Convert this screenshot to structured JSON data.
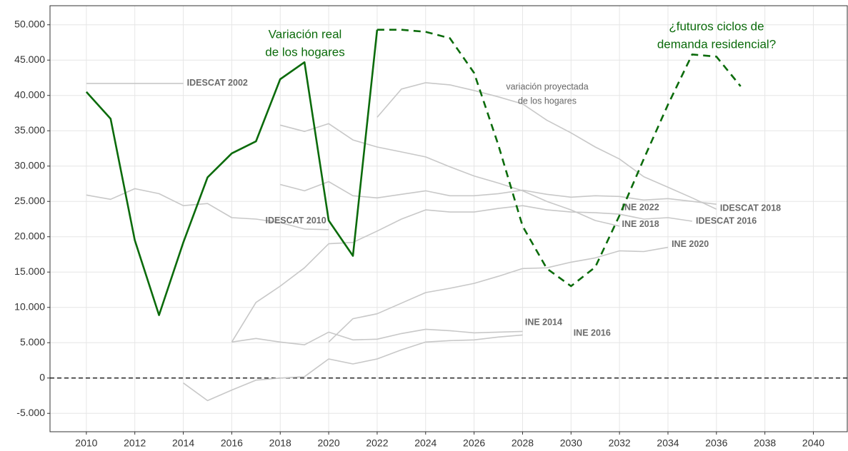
{
  "chart_data": {
    "type": "line",
    "x": [
      2010,
      2011,
      2012,
      2013,
      2014,
      2015,
      2016,
      2017,
      2018,
      2019,
      2020,
      2021,
      2022,
      2023,
      2024,
      2025,
      2026,
      2027,
      2028,
      2029,
      2030,
      2031,
      2032,
      2033,
      2034,
      2035,
      2036,
      2037
    ],
    "xlim": [
      2008.5,
      2041.4
    ],
    "xticks": [
      2010,
      2012,
      2014,
      2016,
      2018,
      2020,
      2022,
      2024,
      2026,
      2028,
      2030,
      2032,
      2034,
      2036,
      2038,
      2040
    ],
    "ylim": [
      -7600,
      52700
    ],
    "yticks": [
      {
        "value": -5000,
        "label": "-5.000"
      },
      0,
      {
        "value": 5000,
        "label": "5.000"
      },
      {
        "value": 10000,
        "label": "10.000"
      },
      {
        "value": 15000,
        "label": "15.000"
      },
      {
        "value": 20000,
        "label": "20.000"
      },
      {
        "value": 25000,
        "label": "25.000"
      },
      {
        "value": 30000,
        "label": "30.000"
      },
      {
        "value": 35000,
        "label": "35.000"
      },
      {
        "value": 40000,
        "label": "40.000"
      },
      {
        "value": 45000,
        "label": "45.000"
      },
      {
        "value": 50000,
        "label": "50.000"
      }
    ],
    "grid": true,
    "hline": 0,
    "series": [
      {
        "color": "#0b6b0b",
        "dash": false,
        "values": [
          40500,
          36700,
          19500,
          8900,
          19200,
          28400,
          31800,
          33500,
          42300,
          44700,
          22300,
          17300,
          49300,
          null,
          null,
          null,
          null,
          null,
          null,
          null,
          null,
          null,
          null,
          null,
          null,
          null,
          null,
          null
        ]
      },
      {
        "color": "#0b6b0b",
        "dash": true,
        "values": [
          null,
          null,
          null,
          null,
          null,
          null,
          null,
          null,
          null,
          null,
          null,
          null,
          49300,
          49300,
          49000,
          48100,
          43200,
          33000,
          21500,
          15500,
          13000,
          15700,
          23000,
          31000,
          38700,
          45800,
          45500,
          41300
        ]
      },
      {
        "name": "IDESCAT 2002",
        "color": "#c8c8c8",
        "dash": false,
        "values": [
          41700,
          41700,
          41700,
          41700,
          41700,
          null,
          null,
          null,
          null,
          null,
          null,
          null,
          null,
          null,
          null,
          null,
          null,
          null,
          null,
          null,
          null,
          null,
          null,
          null,
          null,
          null,
          null,
          null
        ]
      },
      {
        "name": "IDESCAT 2010",
        "color": "#c8c8c8",
        "dash": false,
        "values": [
          25900,
          25300,
          26800,
          26100,
          24400,
          24700,
          22700,
          22500,
          22000,
          21100,
          21000,
          null,
          null,
          null,
          null,
          null,
          null,
          null,
          null,
          null,
          null,
          null,
          null,
          null,
          null,
          null,
          null,
          null
        ]
      },
      {
        "name": "INE 2018",
        "color": "#c8c8c8",
        "dash": false,
        "values": [
          null,
          null,
          null,
          null,
          null,
          null,
          null,
          null,
          35800,
          34900,
          36000,
          33700,
          32700,
          32000,
          31300,
          29900,
          28600,
          27600,
          26500,
          25000,
          23800,
          22300,
          21500,
          null,
          null,
          null,
          null,
          null
        ]
      },
      {
        "name": "IDESCAT 2018",
        "color": "#c8c8c8",
        "dash": false,
        "values": [
          null,
          null,
          null,
          null,
          null,
          null,
          null,
          null,
          27400,
          26500,
          27800,
          25800,
          25500,
          26000,
          26500,
          25800,
          25800,
          26100,
          26600,
          26000,
          25600,
          25800,
          25700,
          25200,
          25400,
          25000,
          24600,
          null
        ]
      },
      {
        "name": "IDESCAT 2016",
        "color": "#c8c8c8",
        "dash": false,
        "values": [
          null,
          null,
          null,
          null,
          null,
          null,
          5100,
          10700,
          13000,
          15600,
          19000,
          19200,
          20800,
          22500,
          23800,
          23500,
          23500,
          24000,
          24400,
          23800,
          23500,
          23400,
          23200,
          22500,
          22700,
          22200,
          null,
          null
        ]
      },
      {
        "name": "INE 2022",
        "color": "#c8c8c8",
        "dash": false,
        "values": [
          null,
          null,
          null,
          null,
          null,
          null,
          null,
          null,
          null,
          null,
          null,
          null,
          36900,
          40900,
          41800,
          41500,
          40700,
          39800,
          38800,
          36500,
          34700,
          32700,
          31000,
          28500,
          27000,
          25500,
          23900,
          null
        ]
      },
      {
        "name": "INE 2014",
        "color": "#c8c8c8",
        "dash": false,
        "values": [
          null,
          null,
          null,
          null,
          null,
          null,
          5100,
          5600,
          5100,
          4700,
          6500,
          5400,
          5500,
          6300,
          6900,
          6700,
          6400,
          6500,
          6600,
          null,
          null,
          null,
          null,
          null,
          null,
          null,
          null,
          null
        ]
      },
      {
        "name": "INE 2016",
        "color": "#c8c8c8",
        "dash": false,
        "values": [
          null,
          null,
          null,
          null,
          -700,
          -3200,
          -1700,
          -300,
          0,
          200,
          2700,
          2000,
          2700,
          4000,
          5100,
          5300,
          5400,
          5800,
          6100,
          null,
          null,
          null,
          null,
          null,
          null,
          null,
          null,
          null
        ]
      },
      {
        "name": "INE 2020",
        "color": "#c8c8c8",
        "dash": false,
        "values": [
          null,
          null,
          null,
          null,
          null,
          null,
          null,
          null,
          null,
          null,
          5100,
          8400,
          9100,
          10600,
          12100,
          12700,
          13400,
          14400,
          15500,
          15600,
          16400,
          17000,
          18000,
          17900,
          18500,
          null,
          null,
          null
        ]
      }
    ],
    "annotations": [
      {
        "color": "#0b6b0b",
        "lines": [
          "Variación real",
          "de los hogares"
        ]
      },
      {
        "color": "#0b6b0b",
        "lines": [
          "¿futuros ciclos de",
          "demanda residencial?"
        ]
      },
      {
        "color": "#666666",
        "lines": [
          "variación proyectada",
          "de los hogares"
        ]
      }
    ]
  }
}
